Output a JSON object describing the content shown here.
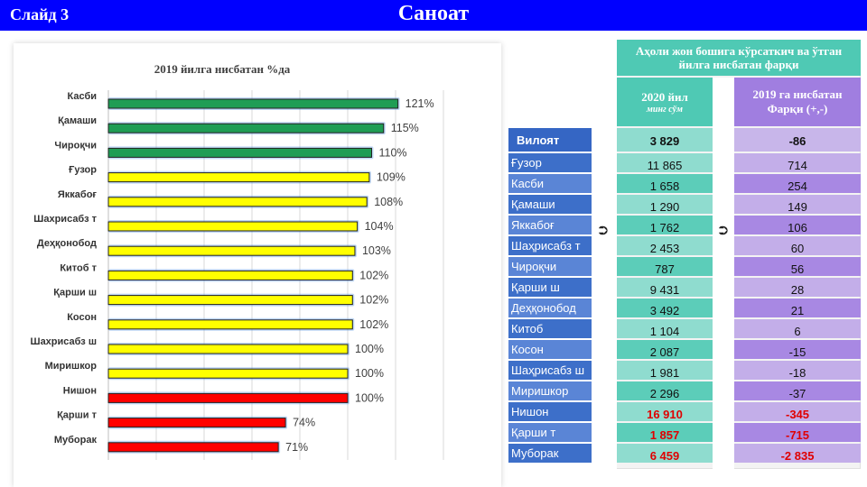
{
  "header": {
    "slide_label": "Слайд 3",
    "title": "Саноат"
  },
  "colors": {
    "topbar": "#0000ff",
    "green": "#1f9d55",
    "yellow": "#ffff00",
    "red": "#ff0000",
    "teal": "#4fc9b4",
    "teal_light": "#8fdccf",
    "purple": "#a07ee0",
    "purple_light": "#c3aee9",
    "blue": "#3d6fc9"
  },
  "chart_data": {
    "type": "bar",
    "title": "2019 йилга нисбатан %да",
    "categories": [
      "Касби",
      "Қамаши",
      "Чироқчи",
      "Ғузор",
      "Яккабоғ",
      "Шахрисабз т",
      "Деҳқонобод",
      "Китоб т",
      "Қарши ш",
      "Косон",
      "Шахрисабз ш",
      "Миришкор",
      "Нишон",
      "Қарши т",
      "Муборак"
    ],
    "values": [
      121,
      115,
      110,
      109,
      108,
      104,
      103,
      102,
      102,
      102,
      100,
      100,
      100,
      74,
      71
    ],
    "value_labels": [
      "121%",
      "115%",
      "110%",
      "109%",
      "108%",
      "104%",
      "103%",
      "102%",
      "102%",
      "102%",
      "100%",
      "100%",
      "100%",
      "74%",
      "71%"
    ],
    "bar_colors": [
      "green",
      "green",
      "green",
      "yellow",
      "yellow",
      "yellow",
      "yellow",
      "yellow",
      "yellow",
      "yellow",
      "yellow",
      "yellow",
      "red",
      "red",
      "red"
    ],
    "xlim": [
      0,
      150
    ],
    "orientation": "horizontal",
    "grid": true
  },
  "table": {
    "header_main": "Аҳоли жон бошига кўрсаткич ва ўтган йилга нисбатан фарқи",
    "col1_title": "2020 йил",
    "col1_unit": "минг сўм",
    "col2_title": "2019 га нисбатан Фарқи (+,-)",
    "arrow_symbol": "⮊",
    "rows": [
      {
        "name": "Вилоят",
        "value": "3 829",
        "diff": "-86",
        "style": "total"
      },
      {
        "name": "Ғузор",
        "value": "11 865",
        "diff": "714",
        "style": "normal"
      },
      {
        "name": "Касби",
        "value": "1 658",
        "diff": "254",
        "style": "normal"
      },
      {
        "name": "Қамаши",
        "value": "1 290",
        "diff": "149",
        "style": "normal"
      },
      {
        "name": "Яккабоғ",
        "value": "1 762",
        "diff": "106",
        "style": "normal"
      },
      {
        "name": "Шаҳрисабз т",
        "value": "2 453",
        "diff": "60",
        "style": "normal"
      },
      {
        "name": "Чироқчи",
        "value": "787",
        "diff": "56",
        "style": "normal"
      },
      {
        "name": "Қарши ш",
        "value": "9 431",
        "diff": "28",
        "style": "normal"
      },
      {
        "name": "Деҳқонобод",
        "value": "3 492",
        "diff": "21",
        "style": "normal"
      },
      {
        "name": "Китоб",
        "value": "1 104",
        "diff": "6",
        "style": "normal"
      },
      {
        "name": "Косон",
        "value": "2 087",
        "diff": "-15",
        "style": "normal"
      },
      {
        "name": "Шаҳрисабз ш",
        "value": "1 981",
        "diff": "-18",
        "style": "normal"
      },
      {
        "name": "Миришкор",
        "value": "2 296",
        "diff": "-37",
        "style": "normal"
      },
      {
        "name": "Нишон",
        "value": "16 910",
        "diff": "-345",
        "style": "red"
      },
      {
        "name": "Қарши т",
        "value": "1 857",
        "diff": "-715",
        "style": "red"
      },
      {
        "name": "Муборак",
        "value": "6 459",
        "diff": "-2 835",
        "style": "red"
      }
    ]
  }
}
